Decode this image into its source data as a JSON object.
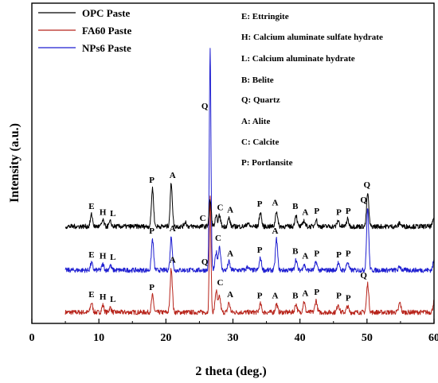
{
  "chart_data": {
    "type": "line",
    "xlabel": "2 theta (deg.)",
    "ylabel": "Intensity (a.u.)",
    "xlim": [
      0,
      60
    ],
    "x_ticks": [
      0,
      10,
      20,
      30,
      40,
      50,
      60
    ],
    "grid": false,
    "legend_position": "top-left",
    "series": [
      {
        "name": "OPC Paste",
        "color": "#000000",
        "level": 0.66,
        "baseline_noise": 0.02,
        "peaks": [
          [
            8.9,
            0.1
          ],
          [
            10.6,
            0.05
          ],
          [
            11.7,
            0.04
          ],
          [
            18.0,
            0.32
          ],
          [
            20.8,
            0.36
          ],
          [
            22.9,
            0.04
          ],
          [
            26.6,
            0.22
          ],
          [
            27.5,
            0.08
          ],
          [
            28.0,
            0.09
          ],
          [
            29.4,
            0.07
          ],
          [
            32.2,
            0.03
          ],
          [
            34.1,
            0.12
          ],
          [
            36.5,
            0.13
          ],
          [
            39.4,
            0.1
          ],
          [
            40.6,
            0.05
          ],
          [
            42.4,
            0.06
          ],
          [
            45.7,
            0.05
          ],
          [
            47.1,
            0.06
          ],
          [
            50.1,
            0.28
          ],
          [
            54.9,
            0.03
          ],
          [
            60.0,
            0.08
          ]
        ]
      },
      {
        "name": "FA60 Paste",
        "color": "#b8251c",
        "level": 0.06,
        "baseline_noise": 0.02,
        "peaks": [
          [
            8.9,
            0.08
          ],
          [
            10.6,
            0.06
          ],
          [
            11.7,
            0.04
          ],
          [
            18.0,
            0.14
          ],
          [
            20.8,
            0.37
          ],
          [
            26.6,
            0.98
          ],
          [
            27.5,
            0.18
          ],
          [
            28.0,
            0.13
          ],
          [
            29.4,
            0.08
          ],
          [
            34.1,
            0.07
          ],
          [
            36.5,
            0.07
          ],
          [
            39.4,
            0.07
          ],
          [
            40.6,
            0.09
          ],
          [
            42.4,
            0.1
          ],
          [
            45.7,
            0.07
          ],
          [
            47.1,
            0.05
          ],
          [
            50.1,
            0.24
          ],
          [
            54.9,
            0.08
          ],
          [
            60.0,
            0.09
          ]
        ]
      },
      {
        "name": "NPs6 Paste",
        "color": "#1f1fd1",
        "level": 0.34,
        "baseline_noise": 0.02,
        "peaks": [
          [
            8.9,
            0.06
          ],
          [
            10.6,
            0.05
          ],
          [
            11.7,
            0.04
          ],
          [
            18.0,
            0.26
          ],
          [
            20.8,
            0.28
          ],
          [
            26.6,
            1.85
          ],
          [
            27.5,
            0.15
          ],
          [
            28.0,
            0.2
          ],
          [
            29.4,
            0.07
          ],
          [
            32.2,
            0.03
          ],
          [
            34.1,
            0.1
          ],
          [
            36.5,
            0.26
          ],
          [
            39.4,
            0.09
          ],
          [
            40.6,
            0.05
          ],
          [
            42.4,
            0.07
          ],
          [
            45.7,
            0.06
          ],
          [
            47.1,
            0.07
          ],
          [
            50.1,
            0.52
          ],
          [
            54.9,
            0.03
          ],
          [
            60.0,
            0.08
          ]
        ]
      }
    ],
    "annotations": [
      {
        "text": "E",
        "x": 8.9,
        "series": 0
      },
      {
        "text": "H",
        "x": 10.6,
        "series": 0
      },
      {
        "text": "L",
        "x": 12.1,
        "series": 0
      },
      {
        "text": "P",
        "x": 17.9,
        "series": 0
      },
      {
        "text": "A",
        "x": 21.0,
        "series": 0
      },
      {
        "text": "C",
        "x": 25.5,
        "series": 0
      },
      {
        "text": "C",
        "x": 28.1,
        "series": 0
      },
      {
        "text": "A",
        "x": 29.6,
        "series": 0
      },
      {
        "text": "P",
        "x": 34.0,
        "series": 0
      },
      {
        "text": "A",
        "x": 36.3,
        "series": 0
      },
      {
        "text": "B",
        "x": 39.3,
        "series": 0
      },
      {
        "text": "A",
        "x": 40.8,
        "series": 0
      },
      {
        "text": "P",
        "x": 42.5,
        "series": 0
      },
      {
        "text": "P",
        "x": 45.8,
        "series": 0
      },
      {
        "text": "P",
        "x": 47.2,
        "series": 0
      },
      {
        "text": "Q",
        "x": 50.0,
        "series": 0
      },
      {
        "text": "Q",
        "x": 25.8,
        "series": 2,
        "top": true
      },
      {
        "text": "E",
        "x": 8.9,
        "series": 2
      },
      {
        "text": "H",
        "x": 10.6,
        "series": 2
      },
      {
        "text": "L",
        "x": 12.1,
        "series": 2
      },
      {
        "text": "P",
        "x": 17.9,
        "series": 2
      },
      {
        "text": "A",
        "x": 21.0,
        "series": 2
      },
      {
        "text": "Q",
        "x": 25.8,
        "series": 2
      },
      {
        "text": "C",
        "x": 27.8,
        "series": 2
      },
      {
        "text": "A",
        "x": 29.6,
        "series": 2
      },
      {
        "text": "P",
        "x": 34.0,
        "series": 2
      },
      {
        "text": "A",
        "x": 36.3,
        "series": 2
      },
      {
        "text": "B",
        "x": 39.3,
        "series": 2
      },
      {
        "text": "A",
        "x": 40.8,
        "series": 2
      },
      {
        "text": "P",
        "x": 42.5,
        "series": 2
      },
      {
        "text": "P",
        "x": 45.8,
        "series": 2
      },
      {
        "text": "P",
        "x": 47.2,
        "series": 2
      },
      {
        "text": "Q",
        "x": 49.5,
        "series": 2
      },
      {
        "text": "E",
        "x": 8.9,
        "series": 1
      },
      {
        "text": "H",
        "x": 10.6,
        "series": 1
      },
      {
        "text": "L",
        "x": 12.1,
        "series": 1
      },
      {
        "text": "P",
        "x": 17.9,
        "series": 1
      },
      {
        "text": "A",
        "x": 21.0,
        "series": 1
      },
      {
        "text": "C",
        "x": 28.1,
        "series": 1
      },
      {
        "text": "A",
        "x": 29.6,
        "series": 1
      },
      {
        "text": "P",
        "x": 34.0,
        "series": 1
      },
      {
        "text": "A",
        "x": 36.3,
        "series": 1
      },
      {
        "text": "B",
        "x": 39.3,
        "series": 1
      },
      {
        "text": "A",
        "x": 40.8,
        "series": 1
      },
      {
        "text": "P",
        "x": 42.5,
        "series": 1
      },
      {
        "text": "P",
        "x": 45.8,
        "series": 1
      },
      {
        "text": "P",
        "x": 47.2,
        "series": 1
      },
      {
        "text": "Q",
        "x": 49.5,
        "series": 1
      }
    ],
    "phase_key": [
      "E: Ettringite",
      "H: Calcium aluminate sulfate hydrate",
      "L:  Calcium aluminate hydrate",
      "B: Belite",
      "Q: Quartz",
      "A: Alite",
      "C: Calcite",
      "P: Portlansite"
    ]
  }
}
